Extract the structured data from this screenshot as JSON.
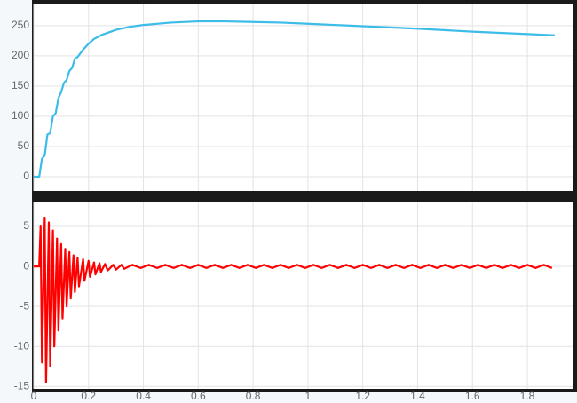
{
  "chart_data": [
    {
      "type": "line",
      "grid": true,
      "xlim": [
        0,
        1.965
      ],
      "xticks": [
        0,
        0.2,
        0.4,
        0.6,
        0.8,
        1,
        1.2,
        1.4,
        1.6,
        1.8
      ],
      "ylim": [
        -23.5,
        285
      ],
      "yticks": [
        0,
        50,
        100,
        150,
        200,
        250
      ],
      "series": [
        {
          "color": "#3bbde8",
          "x": [
            0,
            0.02,
            0.03,
            0.04,
            0.05,
            0.06,
            0.07,
            0.08,
            0.09,
            0.1,
            0.11,
            0.12,
            0.13,
            0.14,
            0.15,
            0.16,
            0.18,
            0.2,
            0.22,
            0.25,
            0.3,
            0.35,
            0.4,
            0.5,
            0.6,
            0.7,
            0.8,
            0.9,
            1.0,
            1.2,
            1.4,
            1.6,
            1.8,
            1.9
          ],
          "values": [
            0,
            0,
            30,
            35,
            70,
            72,
            100,
            105,
            130,
            140,
            155,
            160,
            175,
            180,
            195,
            198,
            210,
            220,
            228,
            235,
            243,
            248,
            251,
            255,
            257,
            257,
            256,
            255,
            253,
            249,
            245,
            240,
            236,
            234
          ]
        }
      ]
    },
    {
      "type": "line",
      "grid": true,
      "xlim": [
        0,
        1.965
      ],
      "xticks": [
        0,
        0.2,
        0.4,
        0.6,
        0.8,
        1,
        1.2,
        1.4,
        1.6,
        1.8
      ],
      "ylim": [
        -15.3,
        8
      ],
      "yticks": [
        -15,
        -10,
        -5,
        0,
        5
      ],
      "series": [
        {
          "color": "#ff0000",
          "x": [
            0,
            0.02,
            0.025,
            0.03,
            0.04,
            0.045,
            0.055,
            0.06,
            0.07,
            0.075,
            0.085,
            0.09,
            0.1,
            0.105,
            0.115,
            0.12,
            0.13,
            0.135,
            0.145,
            0.15,
            0.16,
            0.165,
            0.18,
            0.185,
            0.2,
            0.205,
            0.22,
            0.225,
            0.24,
            0.245,
            0.26,
            0.27,
            0.29,
            0.3,
            0.32,
            0.33,
            0.36,
            0.39,
            0.42,
            0.45,
            0.48,
            0.51,
            0.54,
            0.57,
            0.6,
            0.63,
            0.66,
            0.69,
            0.72,
            0.75,
            0.78,
            0.81,
            0.84,
            0.87,
            0.9,
            0.93,
            0.96,
            0.99,
            1.02,
            1.05,
            1.08,
            1.11,
            1.14,
            1.17,
            1.2,
            1.23,
            1.26,
            1.29,
            1.32,
            1.35,
            1.38,
            1.41,
            1.44,
            1.47,
            1.5,
            1.53,
            1.56,
            1.59,
            1.62,
            1.65,
            1.68,
            1.71,
            1.74,
            1.77,
            1.8,
            1.83,
            1.86,
            1.89
          ],
          "values": [
            0,
            0,
            5,
            -12,
            6,
            -14.5,
            5.5,
            -12.5,
            4.5,
            -10,
            3.5,
            -8,
            2.8,
            -6.5,
            2.2,
            -5,
            1.8,
            -4,
            1.4,
            -3.2,
            1.1,
            -2.5,
            0.9,
            -1.8,
            0.7,
            -1.3,
            0.5,
            -1,
            0.4,
            -0.7,
            0.3,
            -0.5,
            0.2,
            -0.4,
            0.2,
            -0.3,
            0.2,
            -0.2,
            0.2,
            -0.2,
            0.2,
            -0.2,
            0.2,
            -0.2,
            0.2,
            -0.2,
            0.2,
            -0.2,
            0.2,
            -0.2,
            0.2,
            -0.2,
            0.2,
            -0.2,
            0.2,
            -0.2,
            0.2,
            -0.2,
            0.2,
            -0.2,
            0.2,
            -0.2,
            0.2,
            -0.2,
            0.2,
            -0.2,
            0.2,
            -0.2,
            0.2,
            -0.2,
            0.2,
            -0.2,
            0.2,
            -0.2,
            0.2,
            -0.2,
            0.2,
            -0.2,
            0.2,
            -0.2,
            0.2,
            -0.2,
            0.2,
            -0.2,
            0.2,
            -0.2,
            0.2,
            -0.2
          ]
        }
      ]
    }
  ]
}
